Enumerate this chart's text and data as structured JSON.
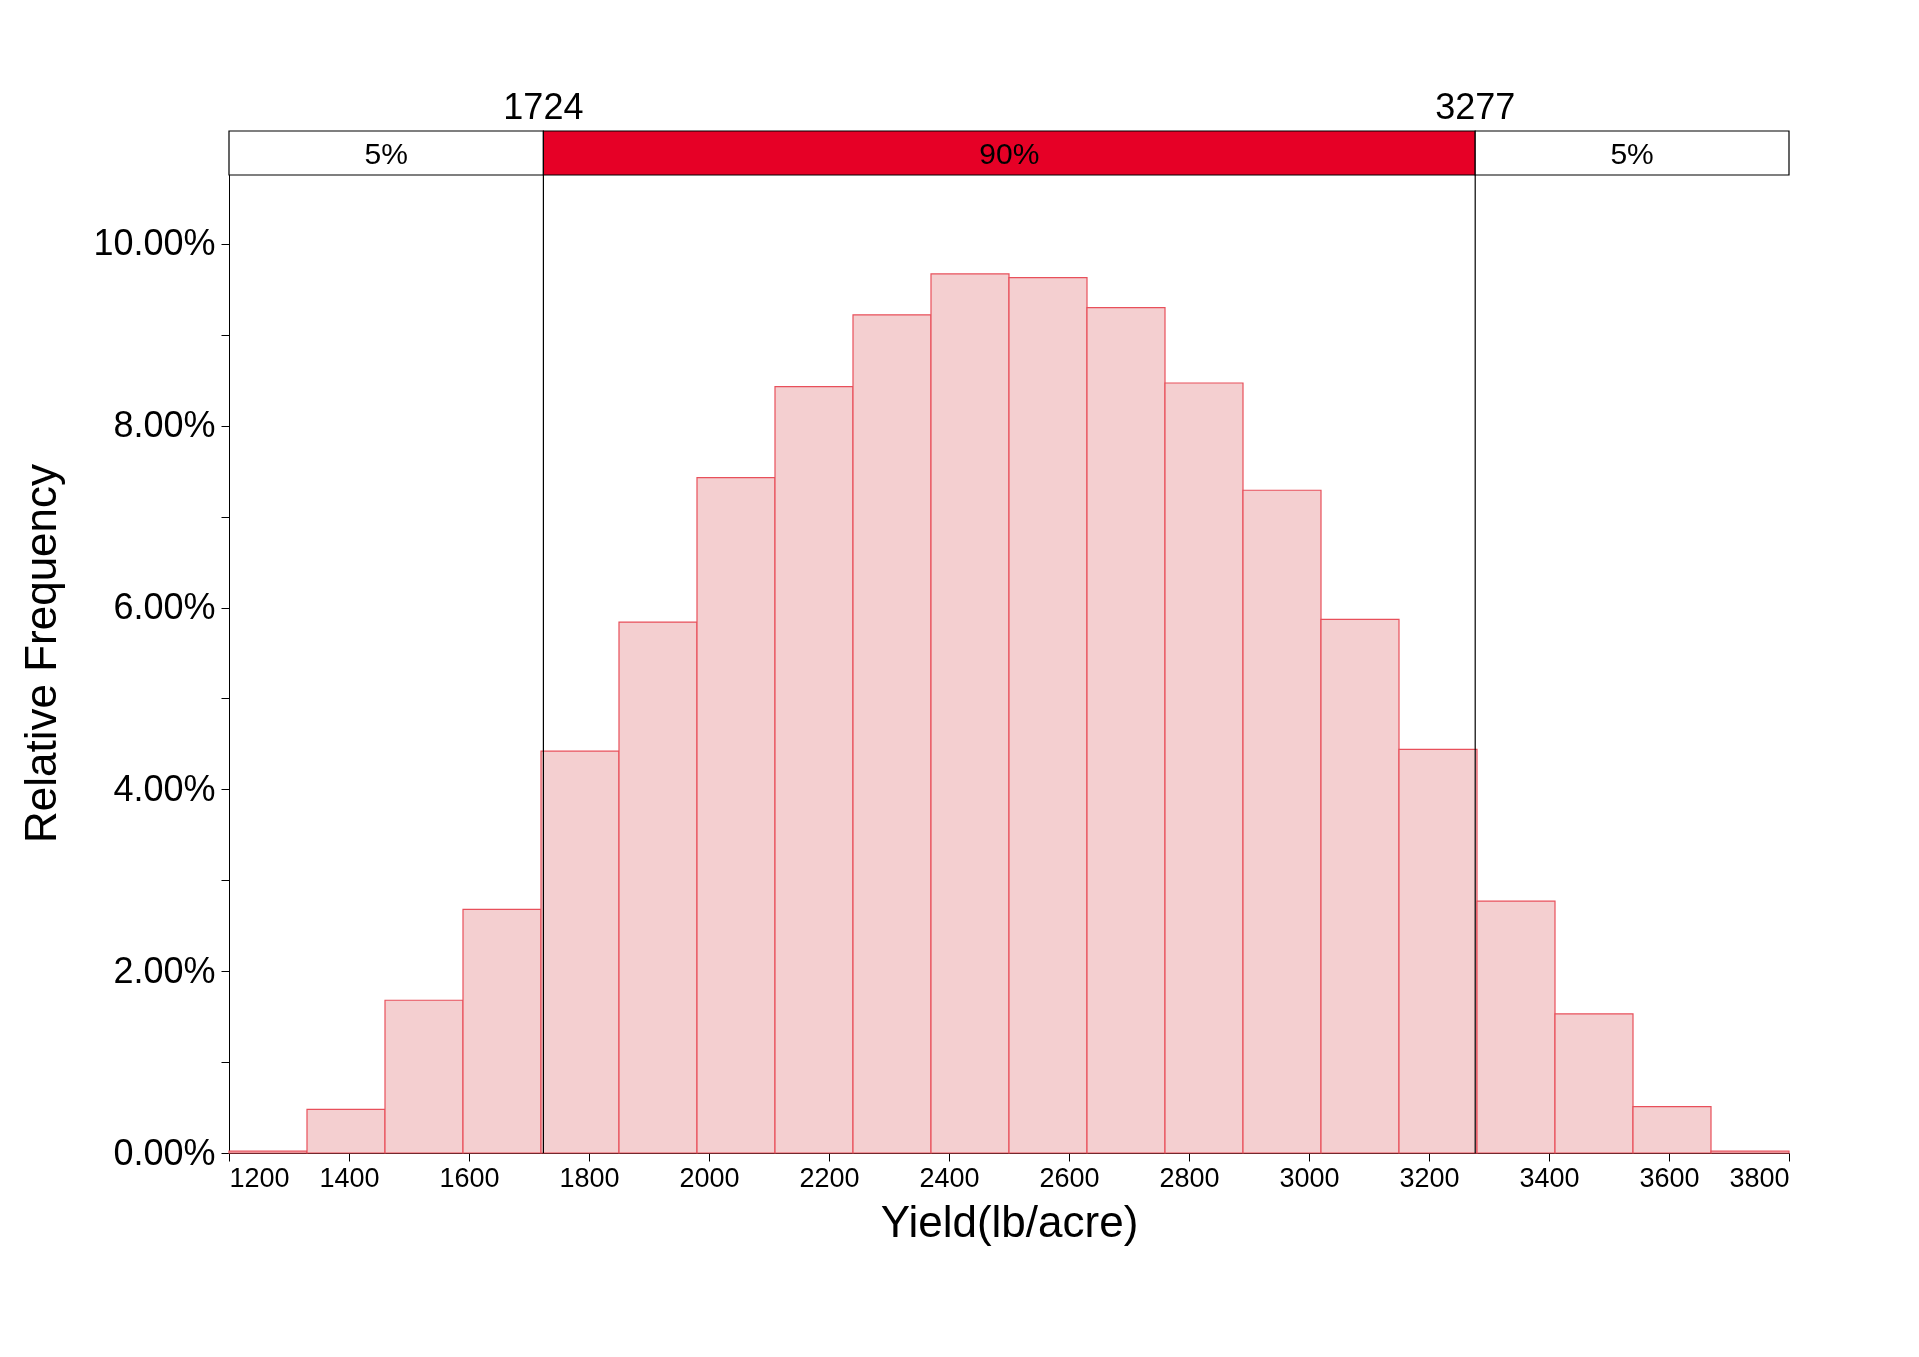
{
  "chart_data": {
    "type": "histogram",
    "xlabel": "Yield(lb/acre)",
    "ylabel": "Relative Frequency",
    "bins": [
      1200,
      1330,
      1460,
      1590,
      1720,
      1850,
      1980,
      2110,
      2240,
      2370,
      2500,
      2630,
      2760,
      2890,
      3020,
      3150,
      3280,
      3410,
      3540,
      3670,
      3800
    ],
    "values": [
      0.02,
      0.48,
      1.68,
      2.68,
      4.42,
      5.84,
      7.43,
      8.43,
      9.22,
      9.67,
      9.63,
      9.3,
      8.47,
      7.29,
      5.87,
      4.44,
      2.77,
      1.53,
      0.51,
      0.02
    ],
    "color": "#f4cfd0",
    "xlim": [
      1200,
      3800
    ],
    "xticks": [
      1200,
      1400,
      1600,
      1800,
      2000,
      2200,
      2400,
      2600,
      2800,
      3000,
      3200,
      3400,
      3600,
      3800
    ],
    "ylim": [
      0,
      11
    ],
    "yticks": [
      {
        "value": 0,
        "label": "0.00%"
      },
      {
        "value": 1,
        "label": null
      },
      {
        "value": 2,
        "label": "2.00%"
      },
      {
        "value": 3,
        "label": null
      },
      {
        "value": 4,
        "label": "4.00%"
      },
      {
        "value": 5,
        "label": null
      },
      {
        "value": 6,
        "label": "6.00%"
      },
      {
        "value": 7,
        "label": null
      },
      {
        "value": 8,
        "label": "8.00%"
      },
      {
        "value": 9,
        "label": null
      },
      {
        "value": 10,
        "label": "10.00%"
      }
    ],
    "annotations": [
      "5%",
      "90%",
      "5%"
    ],
    "ref_lines": [
      {
        "axis": "x",
        "value": 1724,
        "label": "1724"
      },
      {
        "axis": "x",
        "value": 3277,
        "label": "3277"
      }
    ],
    "grid": false
  }
}
